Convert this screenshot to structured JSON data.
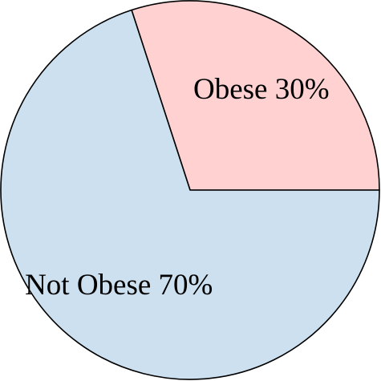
{
  "chart_data": {
    "type": "pie",
    "categories": [
      "Obese",
      "Not Obese"
    ],
    "values": [
      30,
      70
    ],
    "value_labels": [
      "30%",
      "70%"
    ],
    "colors": [
      "#ffd1d1",
      "#cce0f0"
    ],
    "start_angle": 0,
    "direction": "counterclockwise"
  }
}
